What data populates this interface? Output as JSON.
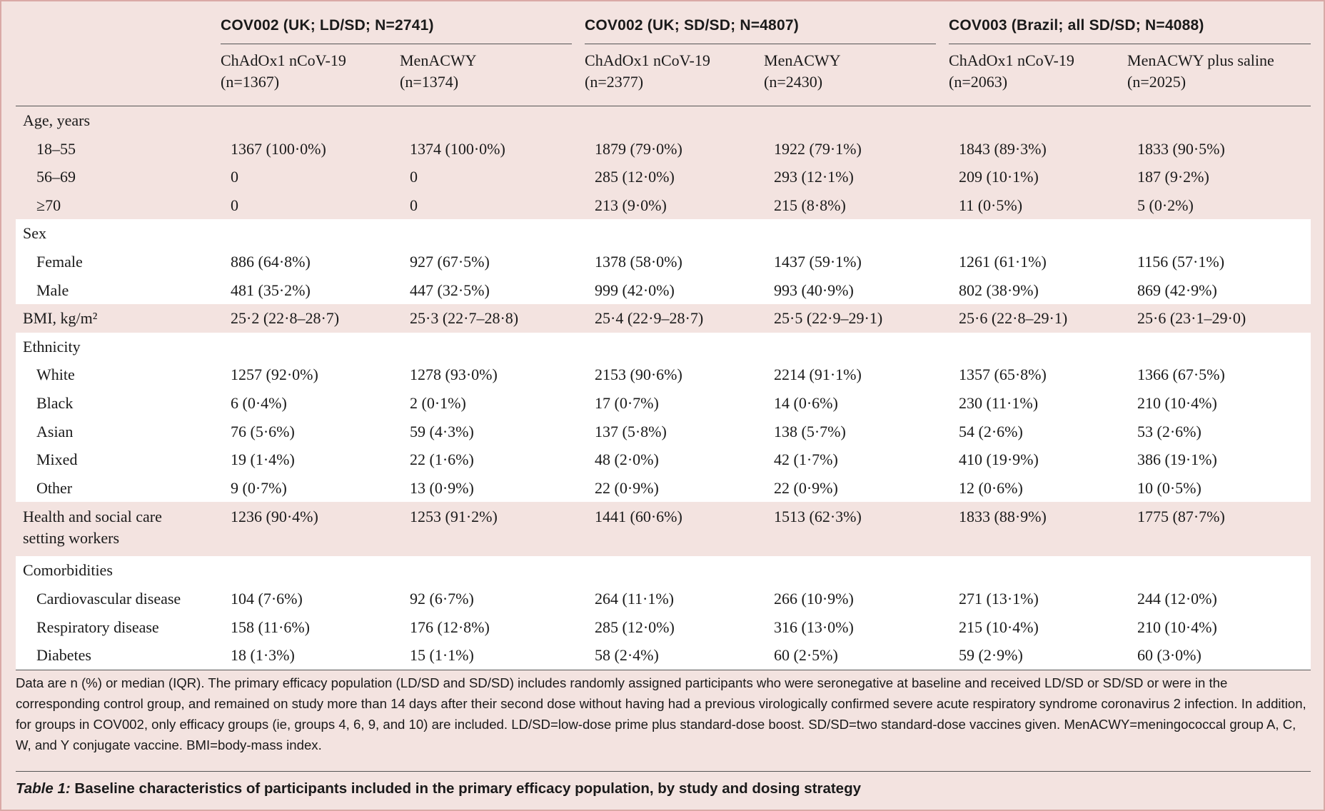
{
  "groups": [
    {
      "title": "COV002 (UK; LD/SD; N=2741)",
      "arms": [
        {
          "name": "ChAdOx1 nCoV-19",
          "n": "(n=1367)"
        },
        {
          "name": "MenACWY",
          "n": "(n=1374)"
        }
      ]
    },
    {
      "title": "COV002 (UK; SD/SD; N=4807)",
      "arms": [
        {
          "name": "ChAdOx1 nCoV-19",
          "n": "(n=2377)"
        },
        {
          "name": "MenACWY",
          "n": "(n=2430)"
        }
      ]
    },
    {
      "title": "COV003 (Brazil; all SD/SD; N=4088)",
      "arms": [
        {
          "name": "ChAdOx1 nCoV-19",
          "n": "(n=2063)"
        },
        {
          "name": "MenACWY plus saline",
          "n": "(n=2025)"
        }
      ]
    }
  ],
  "rows": [
    {
      "label": "Age, years",
      "values": [
        "",
        "",
        "",
        "",
        "",
        ""
      ]
    },
    {
      "label": "18–55",
      "values": [
        "1367 (100·0%)",
        "1374 (100·0%)",
        "1879 (79·0%)",
        "1922 (79·1%)",
        "1843 (89·3%)",
        "1833 (90·5%)"
      ]
    },
    {
      "label": "56–69",
      "values": [
        "0",
        "0",
        "285 (12·0%)",
        "293 (12·1%)",
        "209 (10·1%)",
        "187 (9·2%)"
      ]
    },
    {
      "label": "≥70",
      "values": [
        "0",
        "0",
        "213 (9·0%)",
        "215 (8·8%)",
        "11 (0·5%)",
        "5 (0·2%)"
      ]
    },
    {
      "label": "Sex",
      "values": [
        "",
        "",
        "",
        "",
        "",
        ""
      ]
    },
    {
      "label": "Female",
      "values": [
        "886 (64·8%)",
        "927 (67·5%)",
        "1378 (58·0%)",
        "1437 (59·1%)",
        "1261 (61·1%)",
        "1156 (57·1%)"
      ]
    },
    {
      "label": "Male",
      "values": [
        "481 (35·2%)",
        "447 (32·5%)",
        "999 (42·0%)",
        "993 (40·9%)",
        "802 (38·9%)",
        "869 (42·9%)"
      ]
    },
    {
      "label": "BMI, kg/m²",
      "values": [
        "25·2 (22·8–28·7)",
        "25·3 (22·7–28·8)",
        "25·4 (22·9–28·7)",
        "25·5 (22·9–29·1)",
        "25·6 (22·8–29·1)",
        "25·6 (23·1–29·0)"
      ]
    },
    {
      "label": "Ethnicity",
      "values": [
        "",
        "",
        "",
        "",
        "",
        ""
      ]
    },
    {
      "label": "White",
      "values": [
        "1257 (92·0%)",
        "1278 (93·0%)",
        "2153 (90·6%)",
        "2214 (91·1%)",
        "1357 (65·8%)",
        "1366 (67·5%)"
      ]
    },
    {
      "label": "Black",
      "values": [
        "6 (0·4%)",
        "2 (0·1%)",
        "17 (0·7%)",
        "14 (0·6%)",
        "230 (11·1%)",
        "210 (10·4%)"
      ]
    },
    {
      "label": "Asian",
      "values": [
        "76 (5·6%)",
        "59 (4·3%)",
        "137 (5·8%)",
        "138 (5·7%)",
        "54 (2·6%)",
        "53 (2·6%)"
      ]
    },
    {
      "label": "Mixed",
      "values": [
        "19 (1·4%)",
        "22 (1·6%)",
        "48 (2·0%)",
        "42 (1·7%)",
        "410 (19·9%)",
        "386 (19·1%)"
      ]
    },
    {
      "label": "Other",
      "values": [
        "9 (0·7%)",
        "13 (0·9%)",
        "22 (0·9%)",
        "22 (0·9%)",
        "12 (0·6%)",
        "10 (0·5%)"
      ]
    },
    {
      "label": "Health and social care setting workers",
      "values": [
        "1236 (90·4%)",
        "1253 (91·2%)",
        "1441 (60·6%)",
        "1513 (62·3%)",
        "1833 (88·9%)",
        "1775 (87·7%)"
      ]
    },
    {
      "label": "Comorbidities",
      "values": [
        "",
        "",
        "",
        "",
        "",
        ""
      ]
    },
    {
      "label": "Cardiovascular disease",
      "values": [
        "104 (7·6%)",
        "92 (6·7%)",
        "264 (11·1%)",
        "266 (10·9%)",
        "271 (13·1%)",
        "244 (12·0%)"
      ]
    },
    {
      "label": "Respiratory disease",
      "values": [
        "158 (11·6%)",
        "176 (12·8%)",
        "285 (12·0%)",
        "316 (13·0%)",
        "215 (10·4%)",
        "210 (10·4%)"
      ]
    },
    {
      "label": "Diabetes",
      "values": [
        "18 (1·3%)",
        "15 (1·1%)",
        "58 (2·4%)",
        "60 (2·5%)",
        "59 (2·9%)",
        "60 (3·0%)"
      ]
    }
  ],
  "footnote": "Data are n (%) or median (IQR). The primary efficacy population (LD/SD and SD/SD) includes randomly assigned participants who were seronegative at baseline and received LD/SD or SD/SD or were in the corresponding control group, and remained on study more than 14 days after their second dose without having had a previous virologically confirmed severe acute respiratory syndrome coronavirus 2 infection. In addition, for groups in COV002, only efficacy groups (ie, groups 4, 6, 9, and 10) are included. LD/SD=low-dose prime plus standard-dose boost. SD/SD=two standard-dose vaccines given. MenACWY=meningococcal group A, C, W, and Y conjugate vaccine. BMI=body-mass index.",
  "caption": {
    "label": "Table 1:",
    "text": "Baseline characteristics of participants included in the primary efficacy population, by study and dosing strategy"
  },
  "colors": {
    "pink": "#f3e3e0",
    "white": "#ffffff",
    "border": "#d9a9a6"
  }
}
